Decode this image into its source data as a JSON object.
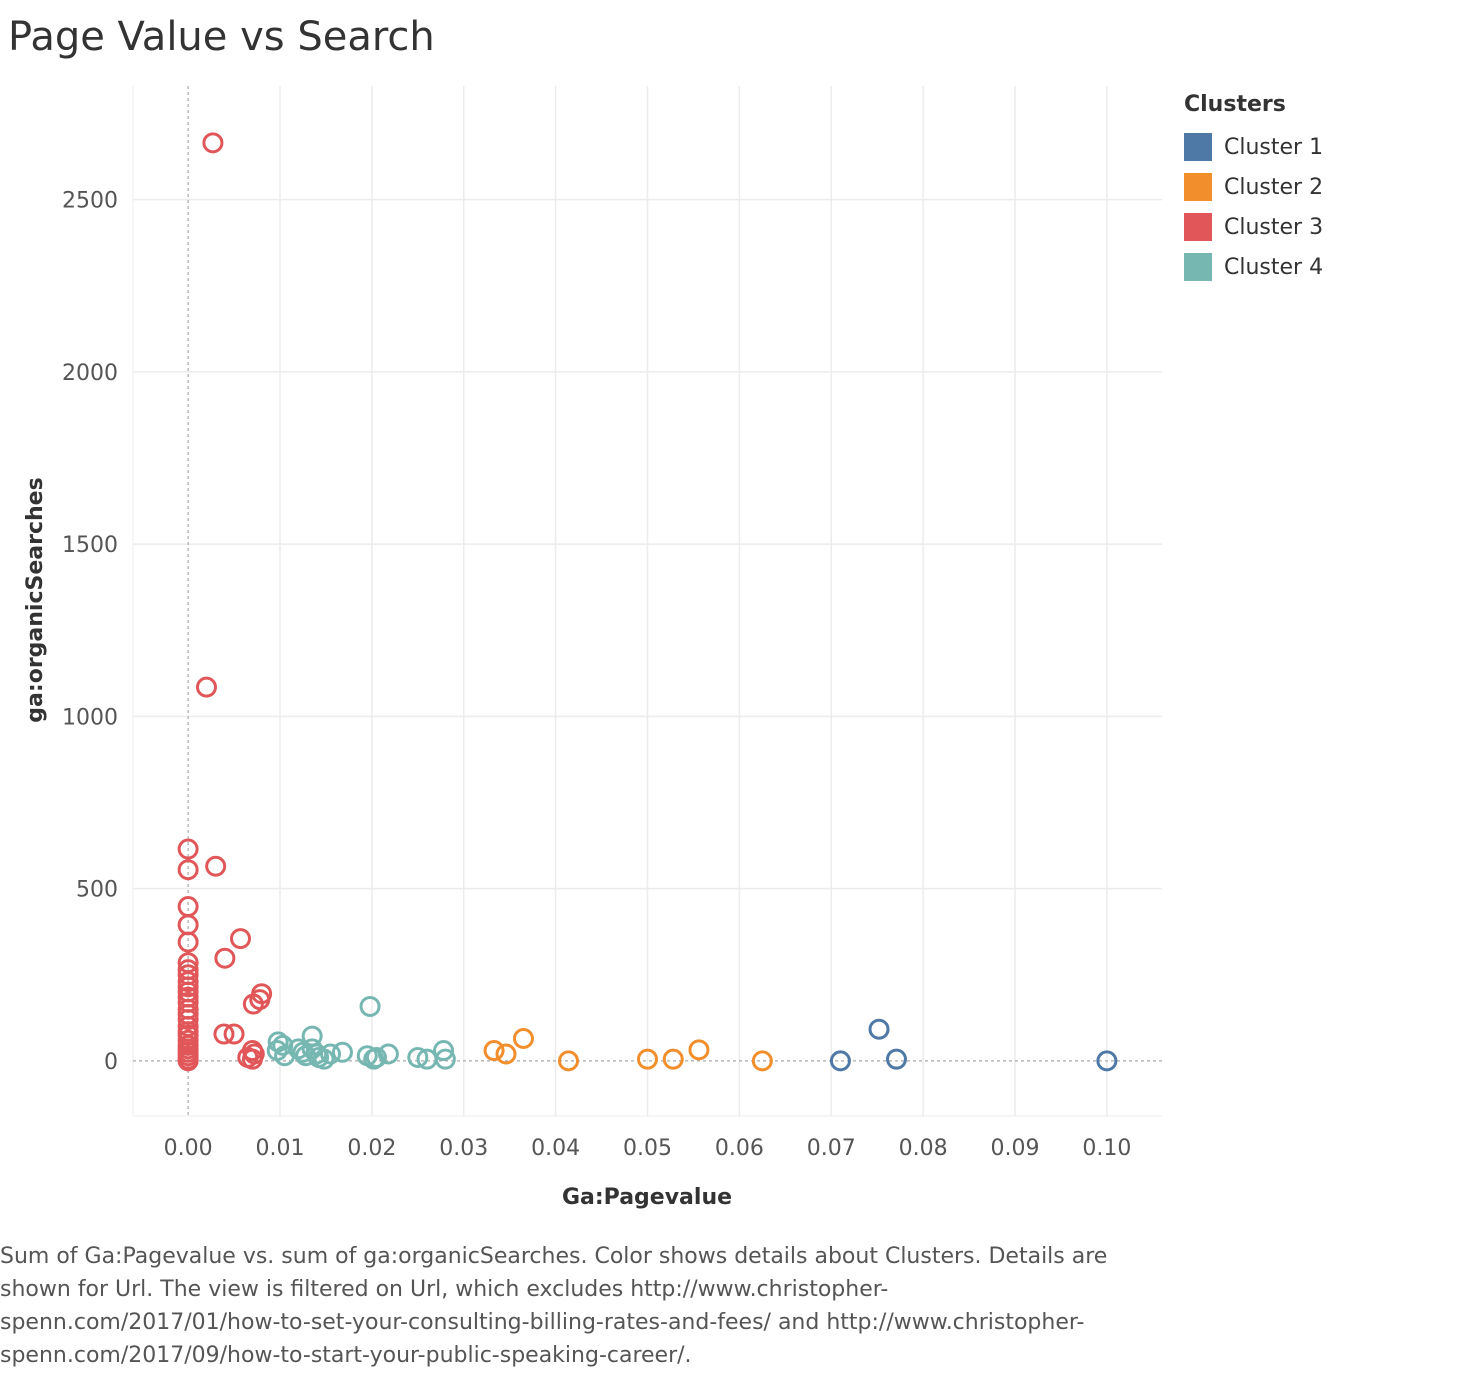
{
  "title": "Page Value vs Search",
  "caption": "Sum of Ga:Pagevalue vs. sum of ga:organicSearches.  Color shows details about Clusters.  Details are shown for Url. The view is filtered on Url, which excludes http://www.christopher-spenn.com/2017/01/how-to-set-your-consulting-billing-rates-and-fees/ and http://www.christopher-spenn.com/2017/09/how-to-start-your-public-speaking-career/.",
  "legend": {
    "title": "Clusters",
    "items": [
      {
        "label": "Cluster 1",
        "color": "#4e79a7"
      },
      {
        "label": "Cluster 2",
        "color": "#f28e2b"
      },
      {
        "label": "Cluster 3",
        "color": "#e15759"
      },
      {
        "label": "Cluster 4",
        "color": "#76b7b2"
      }
    ]
  },
  "chart_data": {
    "type": "scatter",
    "xlabel": "Ga:Pagevalue",
    "ylabel": "ga:organicSearches",
    "xlim": [
      -0.006,
      0.106
    ],
    "ylim": [
      -160,
      2830
    ],
    "xticks": [
      "0.00",
      "0.01",
      "0.02",
      "0.03",
      "0.04",
      "0.05",
      "0.06",
      "0.07",
      "0.08",
      "0.09",
      "0.10"
    ],
    "yticks": [
      "0",
      "500",
      "1000",
      "1500",
      "2000",
      "2500"
    ],
    "grid": true,
    "legend_position": "top-right",
    "series": [
      {
        "name": "Cluster 1",
        "color": "#4e79a7",
        "points": [
          [
            0.071,
            0
          ],
          [
            0.0752,
            92
          ],
          [
            0.0771,
            5
          ],
          [
            0.1,
            0
          ]
        ]
      },
      {
        "name": "Cluster 2",
        "color": "#f28e2b",
        "points": [
          [
            0.0333,
            30
          ],
          [
            0.0346,
            20
          ],
          [
            0.0365,
            65
          ],
          [
            0.0414,
            0
          ],
          [
            0.05,
            5
          ],
          [
            0.0528,
            5
          ],
          [
            0.0556,
            32
          ],
          [
            0.0625,
            0
          ]
        ]
      },
      {
        "name": "Cluster 3",
        "color": "#e15759",
        "points": [
          [
            0.0027,
            2665
          ],
          [
            0.002,
            1085
          ],
          [
            0,
            615
          ],
          [
            0,
            555
          ],
          [
            0.003,
            565
          ],
          [
            0,
            448
          ],
          [
            0,
            395
          ],
          [
            0,
            345
          ],
          [
            0.0057,
            355
          ],
          [
            0.004,
            298
          ],
          [
            0,
            285
          ],
          [
            0,
            265
          ],
          [
            0,
            250
          ],
          [
            0,
            230
          ],
          [
            0,
            215
          ],
          [
            0,
            200
          ],
          [
            0,
            185
          ],
          [
            0,
            170
          ],
          [
            0,
            150
          ],
          [
            0,
            135
          ],
          [
            0,
            120
          ],
          [
            0,
            100
          ],
          [
            0,
            85
          ],
          [
            0,
            75
          ],
          [
            0,
            60
          ],
          [
            0,
            45
          ],
          [
            0,
            35
          ],
          [
            0,
            25
          ],
          [
            0,
            15
          ],
          [
            0,
            5
          ],
          [
            0,
            0
          ],
          [
            0.008,
            195
          ],
          [
            0.0078,
            178
          ],
          [
            0.0071,
            165
          ],
          [
            0.0039,
            78
          ],
          [
            0.005,
            78
          ],
          [
            0.007,
            30
          ],
          [
            0.0072,
            20
          ],
          [
            0.0065,
            10
          ],
          [
            0.007,
            5
          ]
        ]
      },
      {
        "name": "Cluster 4",
        "color": "#76b7b2",
        "points": [
          [
            0.0098,
            55
          ],
          [
            0.0103,
            45
          ],
          [
            0.0097,
            30
          ],
          [
            0.0105,
            15
          ],
          [
            0.012,
            35
          ],
          [
            0.0125,
            25
          ],
          [
            0.0128,
            15
          ],
          [
            0.0135,
            72
          ],
          [
            0.0135,
            35
          ],
          [
            0.014,
            20
          ],
          [
            0.0142,
            10
          ],
          [
            0.0148,
            5
          ],
          [
            0.0155,
            20
          ],
          [
            0.0168,
            25
          ],
          [
            0.0198,
            158
          ],
          [
            0.0195,
            15
          ],
          [
            0.0202,
            5
          ],
          [
            0.0205,
            10
          ],
          [
            0.0218,
            20
          ],
          [
            0.025,
            10
          ],
          [
            0.026,
            5
          ],
          [
            0.0278,
            30
          ],
          [
            0.028,
            5
          ]
        ]
      }
    ]
  }
}
